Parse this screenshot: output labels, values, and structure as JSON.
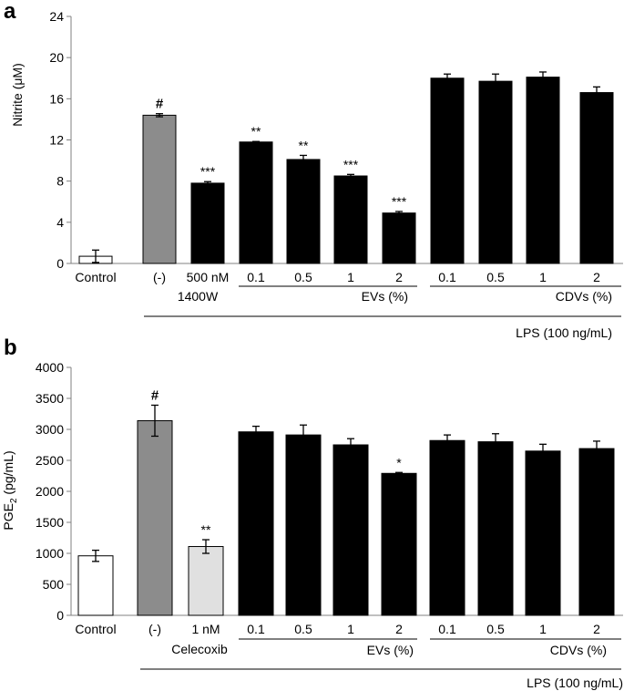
{
  "chart_data": [
    {
      "type": "bar",
      "panel": "a",
      "ylabel": "Nitrite (μM)",
      "ylim": [
        0,
        24
      ],
      "yticks": [
        0,
        4,
        8,
        12,
        16,
        20,
        24
      ],
      "categories": [
        "Control",
        "(-)",
        "500 nM",
        "0.1",
        "0.5",
        "1",
        "2",
        "0.1",
        "0.5",
        "1",
        "2"
      ],
      "values": [
        0.7,
        14.4,
        7.8,
        11.8,
        10.1,
        8.5,
        4.9,
        18.0,
        17.7,
        18.1,
        16.6
      ],
      "errors": [
        0.6,
        0.15,
        0.15,
        0.05,
        0.4,
        0.15,
        0.15,
        0.4,
        0.7,
        0.5,
        0.55
      ],
      "colors": [
        "#ffffff",
        "#8c8c8c",
        "#000000",
        "#000000",
        "#000000",
        "#000000",
        "#000000",
        "#000000",
        "#000000",
        "#000000",
        "#000000"
      ],
      "significance": [
        "",
        "#",
        "***",
        "**",
        "**",
        "***",
        "***",
        "",
        "",
        "",
        ""
      ],
      "group_labels": {
        "inhibitor": "1400W",
        "evs": "EVs (%)",
        "cdvs": "CDVs (%)",
        "lps": "LPS (100 ng/mL)"
      }
    },
    {
      "type": "bar",
      "panel": "b",
      "ylabel": "PGE2 (pg/mL)",
      "ylabel_main": "PGE",
      "ylabel_sub": "2",
      "ylabel_unit": " (pg/mL)",
      "ylim": [
        0,
        4000
      ],
      "yticks": [
        0,
        500,
        1000,
        1500,
        2000,
        2500,
        3000,
        3500,
        4000
      ],
      "categories": [
        "Control",
        "(-)",
        "1 nM",
        "0.1",
        "0.5",
        "1",
        "2",
        "0.1",
        "0.5",
        "1",
        "2"
      ],
      "values": [
        960,
        3140,
        1110,
        2960,
        2910,
        2750,
        2290,
        2820,
        2800,
        2650,
        2690
      ],
      "errors": [
        90,
        250,
        110,
        90,
        160,
        100,
        15,
        90,
        130,
        110,
        120
      ],
      "colors": [
        "#ffffff",
        "#8c8c8c",
        "#e0e0e0",
        "#000000",
        "#000000",
        "#000000",
        "#000000",
        "#000000",
        "#000000",
        "#000000",
        "#000000"
      ],
      "significance": [
        "",
        "#",
        "**",
        "",
        "",
        "",
        "*",
        "",
        "",
        "",
        ""
      ],
      "group_labels": {
        "inhibitor": "Celecoxib",
        "evs": "EVs (%)",
        "cdvs": "CDVs (%)",
        "lps": "LPS (100 ng/mL)"
      }
    }
  ]
}
